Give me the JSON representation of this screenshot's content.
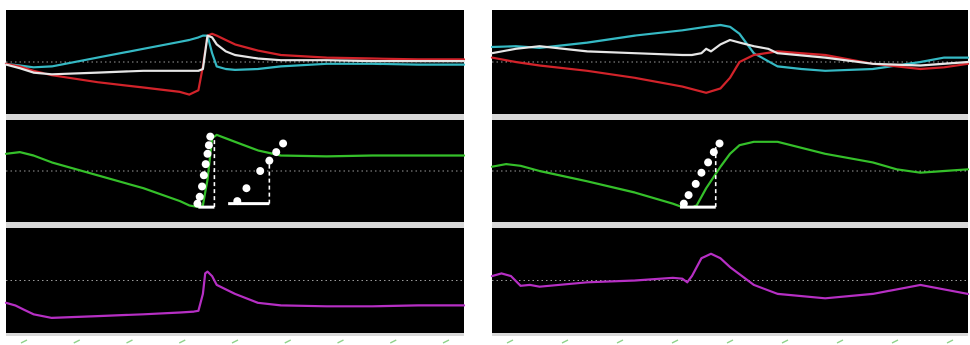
{
  "colors": {
    "background": "#000000",
    "divider": "#d8d8d8",
    "reference_line": "#9a9a9a",
    "cyan": "#35b9c4",
    "red": "#d2232a",
    "white": "#e6e6e6",
    "green": "#35c02a",
    "magenta": "#b62fc4",
    "marker": "#ffffff",
    "tick": "#8fd28a"
  },
  "chart_data": [
    {
      "type": "line",
      "panel": "left",
      "x_range": [
        0,
        100
      ],
      "grid": false,
      "legend": "none",
      "tracks": [
        {
          "id": "top",
          "y_range": [
            0,
            100
          ],
          "reference": 50,
          "series": [
            {
              "color": "cyan",
              "x": [
                0,
                3,
                6,
                10,
                20,
                30,
                38,
                40,
                42,
                43,
                44,
                45,
                46,
                48,
                50,
                55,
                60,
                70,
                80,
                90,
                100
              ],
              "y": [
                48,
                46,
                44,
                45,
                55,
                65,
                73,
                75,
                78,
                80,
                80,
                60,
                45,
                42,
                41,
                42,
                45,
                48,
                48,
                47,
                47
              ]
            },
            {
              "color": "red",
              "x": [
                0,
                3,
                6,
                10,
                20,
                30,
                38,
                40,
                42,
                43,
                44,
                45,
                46,
                48,
                50,
                55,
                60,
                70,
                80,
                90,
                100
              ],
              "y": [
                48,
                45,
                40,
                35,
                27,
                21,
                16,
                13,
                18,
                45,
                80,
                82,
                80,
                75,
                70,
                63,
                58,
                55,
                54,
                53,
                53
              ]
            },
            {
              "color": "white",
              "x": [
                0,
                3,
                6,
                10,
                20,
                30,
                38,
                40,
                42,
                43,
                44,
                45,
                46,
                48,
                50,
                55,
                60,
                70,
                80,
                90,
                100
              ],
              "y": [
                47,
                43,
                38,
                36,
                38,
                40,
                40,
                40,
                40,
                42,
                80,
                78,
                70,
                62,
                58,
                54,
                52,
                52,
                51,
                51,
                51
              ]
            }
          ]
        },
        {
          "id": "middle",
          "y_range": [
            0,
            100
          ],
          "reference": 50,
          "series": [
            {
              "color": "green",
              "x": [
                0,
                3,
                6,
                10,
                20,
                30,
                38,
                40,
                42,
                43,
                44,
                45,
                46,
                48,
                50,
                55,
                60,
                70,
                80,
                90,
                100
              ],
              "y": [
                70,
                72,
                68,
                60,
                45,
                30,
                15,
                10,
                8,
                10,
                40,
                88,
                92,
                88,
                84,
                74,
                68,
                67,
                68,
                68,
                68
              ]
            }
          ],
          "markers": [
            {
              "x": [
                41.8,
                42.3,
                42.8,
                43.2,
                43.6,
                44.0,
                44.3,
                44.6
              ],
              "y": [
                12,
                20,
                32,
                45,
                58,
                70,
                80,
                90
              ]
            },
            {
              "x": [
                50.5,
                52.5,
                55.5,
                57.5,
                59.0,
                60.5
              ],
              "y": [
                15,
                30,
                50,
                62,
                72,
                82
              ]
            }
          ],
          "slope_triangles": [
            {
              "x1": 42,
              "x2": 45.5,
              "y1": 8,
              "y2": 88
            },
            {
              "x1": 48.5,
              "x2": 57.5,
              "y1": 12,
              "y2": 62
            }
          ]
        },
        {
          "id": "bottom",
          "y_range": [
            0,
            100
          ],
          "reference": 50,
          "series": [
            {
              "color": "magenta",
              "x": [
                0,
                2,
                4,
                6,
                10,
                20,
                30,
                38,
                41,
                42,
                43,
                43.5,
                44,
                45,
                46,
                48,
                50,
                55,
                60,
                70,
                80,
                90,
                100
              ],
              "y": [
                25,
                22,
                17,
                12,
                8,
                10,
                12,
                14,
                15,
                16,
                35,
                58,
                60,
                55,
                45,
                40,
                35,
                25,
                22,
                21,
                21,
                22,
                22
              ]
            }
          ]
        }
      ]
    },
    {
      "type": "line",
      "panel": "right",
      "x_range": [
        0,
        100
      ],
      "grid": false,
      "legend": "none",
      "tracks": [
        {
          "id": "top",
          "y_range": [
            0,
            100
          ],
          "reference": 50,
          "series": [
            {
              "color": "cyan",
              "x": [
                0,
                5,
                10,
                20,
                30,
                40,
                45,
                48,
                50,
                52,
                55,
                60,
                65,
                70,
                80,
                90,
                95,
                100
              ],
              "y": [
                67,
                68,
                66,
                72,
                80,
                86,
                90,
                92,
                90,
                82,
                60,
                45,
                42,
                40,
                42,
                50,
                55,
                55
              ]
            },
            {
              "color": "red",
              "x": [
                0,
                5,
                10,
                20,
                30,
                40,
                45,
                48,
                50,
                52,
                55,
                60,
                65,
                70,
                80,
                90,
                95,
                100
              ],
              "y": [
                55,
                50,
                46,
                40,
                32,
                22,
                15,
                20,
                32,
                50,
                58,
                62,
                60,
                58,
                48,
                42,
                44,
                48
              ]
            },
            {
              "color": "white",
              "x": [
                0,
                5,
                10,
                20,
                30,
                40,
                42,
                44,
                45,
                46,
                48,
                50,
                52,
                55,
                58,
                60,
                70,
                80,
                90,
                100
              ],
              "y": [
                60,
                65,
                68,
                62,
                60,
                58,
                58,
                60,
                65,
                62,
                70,
                75,
                72,
                68,
                65,
                60,
                55,
                48,
                46,
                50
              ]
            }
          ]
        },
        {
          "id": "middle",
          "y_range": [
            0,
            100
          ],
          "reference": 50,
          "series": [
            {
              "color": "green",
              "x": [
                0,
                3,
                6,
                10,
                20,
                30,
                38,
                40,
                42,
                43,
                45,
                48,
                50,
                52,
                55,
                60,
                70,
                80,
                85,
                90,
                95,
                100
              ],
              "y": [
                55,
                58,
                56,
                50,
                38,
                25,
                12,
                8,
                8,
                10,
                30,
                55,
                70,
                80,
                84,
                84,
                70,
                60,
                52,
                48,
                50,
                52
              ]
            }
          ],
          "markers": [
            {
              "x": [
                40.3,
                41.3,
                42.8,
                44.0,
                45.4,
                46.6,
                47.8
              ],
              "y": [
                12,
                22,
                35,
                48,
                60,
                72,
                82
              ]
            }
          ],
          "slope_triangles": [
            {
              "x1": 39.5,
              "x2": 47,
              "y1": 8,
              "y2": 80
            }
          ]
        },
        {
          "id": "bottom",
          "y_range": [
            0,
            100
          ],
          "reference": 50,
          "series": [
            {
              "color": "magenta",
              "x": [
                0,
                2,
                4,
                6,
                8,
                10,
                20,
                30,
                38,
                40,
                41,
                42,
                44,
                46,
                48,
                50,
                55,
                60,
                70,
                80,
                85,
                90,
                95,
                100
              ],
              "y": [
                55,
                58,
                55,
                44,
                45,
                43,
                48,
                50,
                53,
                52,
                48,
                55,
                75,
                80,
                75,
                65,
                45,
                35,
                30,
                35,
                40,
                45,
                40,
                35
              ]
            }
          ]
        }
      ]
    }
  ]
}
